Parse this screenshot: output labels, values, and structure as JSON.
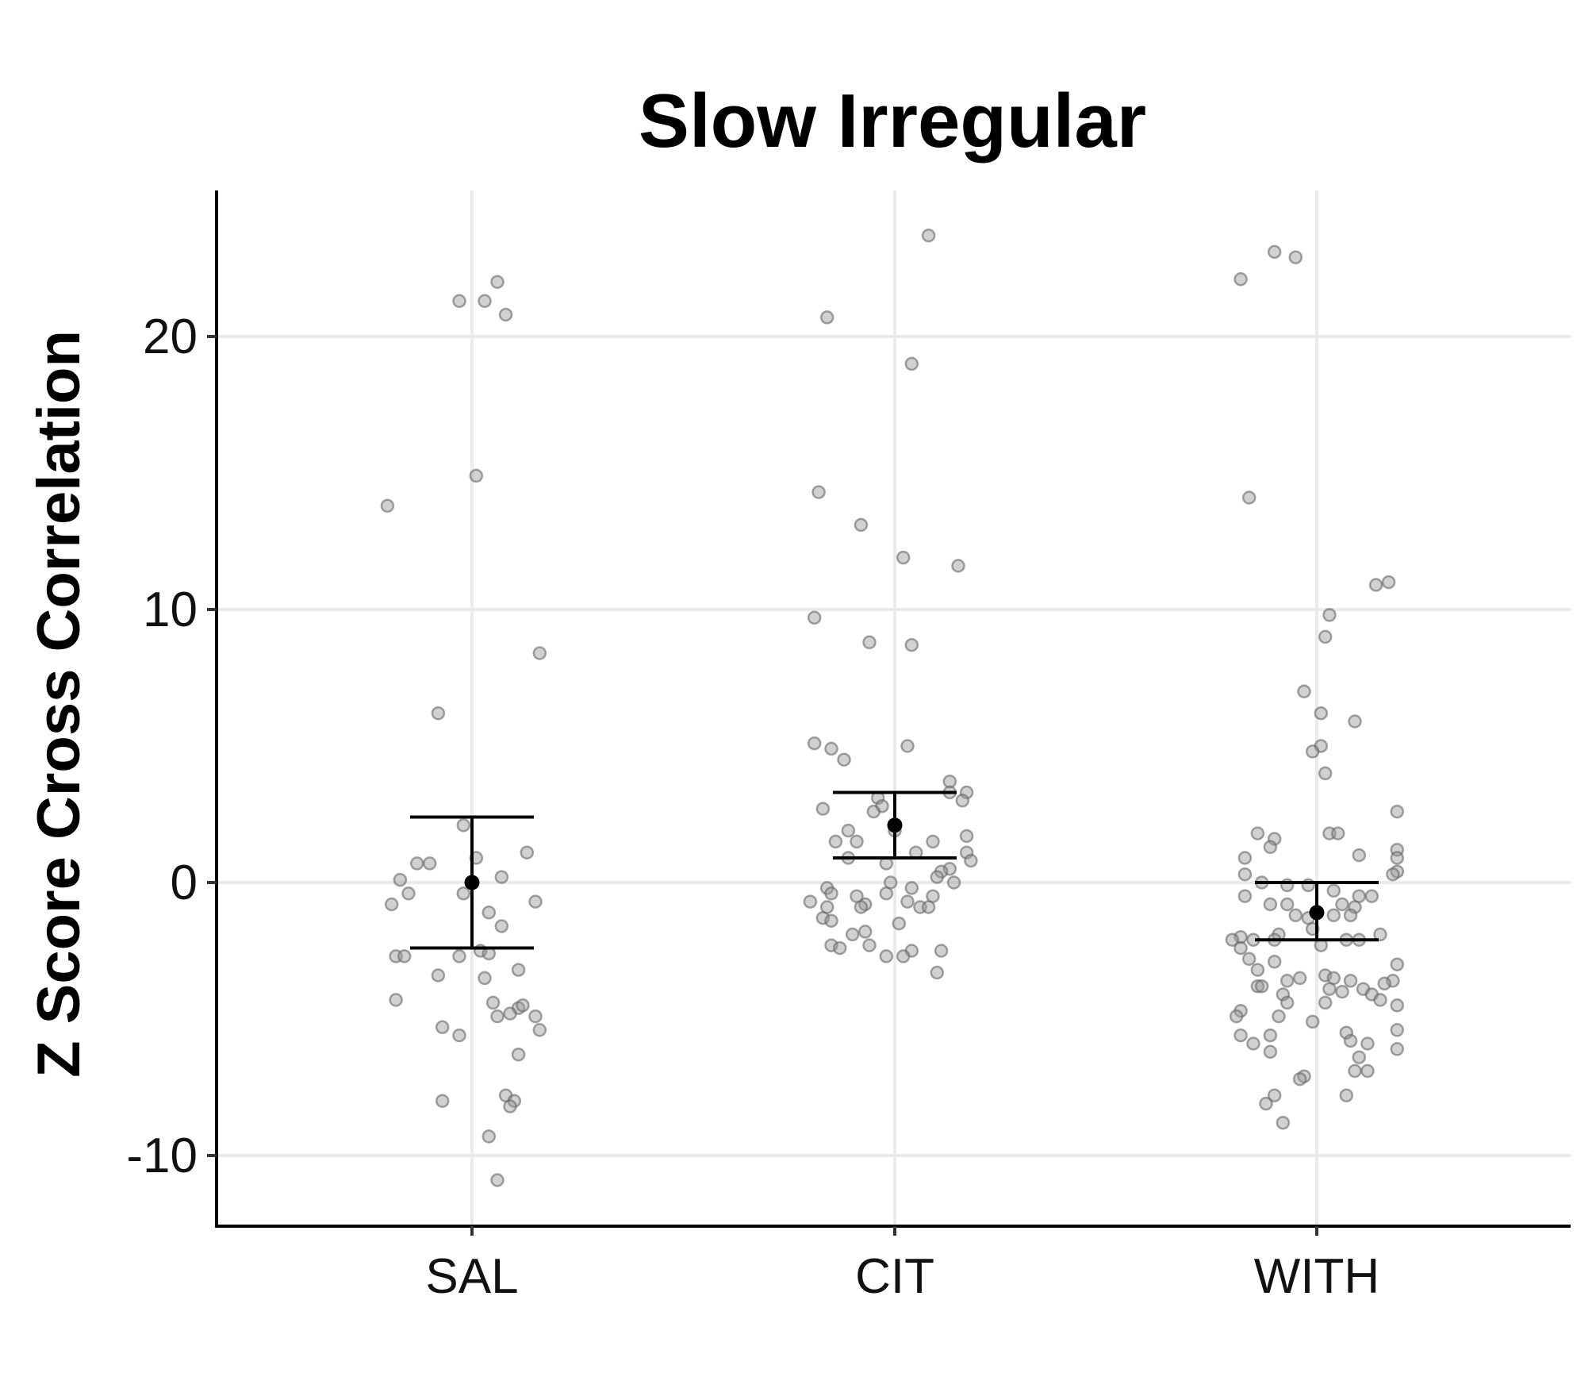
{
  "chart_data": {
    "type": "scatter",
    "title": "Slow Irregular",
    "xlabel": "",
    "ylabel": "Z Score Cross Correlation",
    "categories": [
      "SAL",
      "CIT",
      "WITH"
    ],
    "yticks": [
      -10,
      0,
      10,
      20
    ],
    "ytick_labels": [
      "-10",
      "0",
      "10",
      "20"
    ],
    "ylim": [
      -12.6,
      25.3
    ],
    "grid": true,
    "legend": "none",
    "point_color": "#999999",
    "summary": [
      {
        "category": "SAL",
        "mean": 0.0,
        "lower": -2.4,
        "upper": 2.4
      },
      {
        "category": "CIT",
        "mean": 2.1,
        "lower": 0.9,
        "upper": 3.3
      },
      {
        "category": "WITH",
        "mean": -1.1,
        "lower": -2.1,
        "upper": 0.0
      }
    ],
    "points": {
      "SAL": [
        {
          "j": 0.06,
          "y": 22.0
        },
        {
          "j": -0.03,
          "y": 21.3
        },
        {
          "j": 0.03,
          "y": 21.3
        },
        {
          "j": 0.08,
          "y": 20.8
        },
        {
          "j": 0.01,
          "y": 14.9
        },
        {
          "j": -0.2,
          "y": 13.8
        },
        {
          "j": 0.16,
          "y": 8.4
        },
        {
          "j": -0.08,
          "y": 6.2
        },
        {
          "j": -0.02,
          "y": 2.1
        },
        {
          "j": -0.13,
          "y": 0.7
        },
        {
          "j": -0.1,
          "y": 0.7
        },
        {
          "j": 0.01,
          "y": 0.9
        },
        {
          "j": 0.13,
          "y": 1.1
        },
        {
          "j": -0.17,
          "y": 0.1
        },
        {
          "j": 0.07,
          "y": 0.2
        },
        {
          "j": -0.15,
          "y": -0.4
        },
        {
          "j": -0.02,
          "y": -0.4
        },
        {
          "j": -0.19,
          "y": -0.8
        },
        {
          "j": 0.15,
          "y": -0.7
        },
        {
          "j": 0.04,
          "y": -1.1
        },
        {
          "j": 0.07,
          "y": -1.6
        },
        {
          "j": -0.18,
          "y": -2.7
        },
        {
          "j": -0.16,
          "y": -2.7
        },
        {
          "j": -0.03,
          "y": -2.7
        },
        {
          "j": 0.02,
          "y": -2.5
        },
        {
          "j": 0.04,
          "y": -2.6
        },
        {
          "j": -0.08,
          "y": -3.4
        },
        {
          "j": 0.03,
          "y": -3.5
        },
        {
          "j": 0.11,
          "y": -3.2
        },
        {
          "j": -0.18,
          "y": -4.3
        },
        {
          "j": 0.05,
          "y": -4.4
        },
        {
          "j": 0.11,
          "y": -4.6
        },
        {
          "j": 0.12,
          "y": -4.5
        },
        {
          "j": 0.09,
          "y": -4.8
        },
        {
          "j": 0.06,
          "y": -4.9
        },
        {
          "j": 0.15,
          "y": -4.9
        },
        {
          "j": -0.07,
          "y": -5.3
        },
        {
          "j": 0.16,
          "y": -5.4
        },
        {
          "j": -0.03,
          "y": -5.6
        },
        {
          "j": 0.11,
          "y": -6.3
        },
        {
          "j": 0.08,
          "y": -7.8
        },
        {
          "j": -0.07,
          "y": -8.0
        },
        {
          "j": 0.1,
          "y": -8.0
        },
        {
          "j": 0.09,
          "y": -8.2
        },
        {
          "j": 0.04,
          "y": -9.3
        },
        {
          "j": 0.06,
          "y": -10.9
        }
      ],
      "CIT": [
        {
          "j": 0.08,
          "y": 23.7
        },
        {
          "j": -0.16,
          "y": 20.7
        },
        {
          "j": 0.04,
          "y": 19.0
        },
        {
          "j": -0.18,
          "y": 14.3
        },
        {
          "j": -0.08,
          "y": 13.1
        },
        {
          "j": 0.02,
          "y": 11.9
        },
        {
          "j": 0.15,
          "y": 11.6
        },
        {
          "j": -0.19,
          "y": 9.7
        },
        {
          "j": -0.06,
          "y": 8.8
        },
        {
          "j": 0.04,
          "y": 8.7
        },
        {
          "j": -0.19,
          "y": 5.1
        },
        {
          "j": -0.15,
          "y": 4.9
        },
        {
          "j": 0.03,
          "y": 5.0
        },
        {
          "j": -0.12,
          "y": 4.5
        },
        {
          "j": 0.13,
          "y": 3.7
        },
        {
          "j": 0.17,
          "y": 3.3
        },
        {
          "j": 0.13,
          "y": 3.3
        },
        {
          "j": 0.16,
          "y": 3.0
        },
        {
          "j": -0.04,
          "y": 3.1
        },
        {
          "j": -0.03,
          "y": 2.8
        },
        {
          "j": -0.17,
          "y": 2.7
        },
        {
          "j": -0.05,
          "y": 2.6
        },
        {
          "j": -0.11,
          "y": 1.9
        },
        {
          "j": 0.0,
          "y": 1.9
        },
        {
          "j": 0.17,
          "y": 1.7
        },
        {
          "j": -0.14,
          "y": 1.5
        },
        {
          "j": -0.09,
          "y": 1.5
        },
        {
          "j": 0.09,
          "y": 1.5
        },
        {
          "j": 0.17,
          "y": 1.1
        },
        {
          "j": 0.05,
          "y": 1.1
        },
        {
          "j": -0.11,
          "y": 0.9
        },
        {
          "j": 0.18,
          "y": 0.8
        },
        {
          "j": -0.02,
          "y": 0.7
        },
        {
          "j": 0.13,
          "y": 0.5
        },
        {
          "j": 0.11,
          "y": 0.4
        },
        {
          "j": 0.14,
          "y": 0.0
        },
        {
          "j": 0.1,
          "y": 0.2
        },
        {
          "j": -0.01,
          "y": 0.0
        },
        {
          "j": -0.16,
          "y": -0.2
        },
        {
          "j": 0.04,
          "y": -0.2
        },
        {
          "j": -0.15,
          "y": -0.4
        },
        {
          "j": -0.09,
          "y": -0.5
        },
        {
          "j": -0.02,
          "y": -0.4
        },
        {
          "j": 0.09,
          "y": -0.5
        },
        {
          "j": 0.03,
          "y": -0.7
        },
        {
          "j": -0.2,
          "y": -0.7
        },
        {
          "j": -0.07,
          "y": -0.8
        },
        {
          "j": -0.16,
          "y": -0.9
        },
        {
          "j": -0.08,
          "y": -0.9
        },
        {
          "j": 0.06,
          "y": -0.9
        },
        {
          "j": 0.08,
          "y": -0.9
        },
        {
          "j": -0.17,
          "y": -1.3
        },
        {
          "j": -0.15,
          "y": -1.4
        },
        {
          "j": 0.01,
          "y": -1.5
        },
        {
          "j": -0.07,
          "y": -1.8
        },
        {
          "j": -0.1,
          "y": -1.9
        },
        {
          "j": -0.15,
          "y": -2.3
        },
        {
          "j": -0.13,
          "y": -2.4
        },
        {
          "j": -0.06,
          "y": -2.3
        },
        {
          "j": 0.04,
          "y": -2.5
        },
        {
          "j": 0.11,
          "y": -2.5
        },
        {
          "j": -0.02,
          "y": -2.7
        },
        {
          "j": 0.02,
          "y": -2.7
        },
        {
          "j": 0.1,
          "y": -3.3
        }
      ],
      "WITH": [
        {
          "j": -0.1,
          "y": 23.1
        },
        {
          "j": -0.05,
          "y": 22.9
        },
        {
          "j": -0.18,
          "y": 22.1
        },
        {
          "j": -0.16,
          "y": 14.1
        },
        {
          "j": 0.17,
          "y": 11.0
        },
        {
          "j": 0.14,
          "y": 10.9
        },
        {
          "j": 0.03,
          "y": 9.8
        },
        {
          "j": 0.02,
          "y": 9.0
        },
        {
          "j": -0.03,
          "y": 7.0
        },
        {
          "j": 0.01,
          "y": 6.2
        },
        {
          "j": 0.09,
          "y": 5.9
        },
        {
          "j": 0.01,
          "y": 5.0
        },
        {
          "j": -0.01,
          "y": 4.8
        },
        {
          "j": 0.02,
          "y": 4.0
        },
        {
          "j": 0.19,
          "y": 2.6
        },
        {
          "j": -0.14,
          "y": 1.8
        },
        {
          "j": -0.1,
          "y": 1.6
        },
        {
          "j": 0.03,
          "y": 1.8
        },
        {
          "j": 0.05,
          "y": 1.8
        },
        {
          "j": -0.11,
          "y": 1.3
        },
        {
          "j": 0.19,
          "y": 1.2
        },
        {
          "j": 0.1,
          "y": 1.0
        },
        {
          "j": -0.17,
          "y": 0.9
        },
        {
          "j": 0.19,
          "y": 0.9
        },
        {
          "j": 0.19,
          "y": 0.4
        },
        {
          "j": -0.17,
          "y": 0.3
        },
        {
          "j": 0.18,
          "y": 0.3
        },
        {
          "j": -0.13,
          "y": 0.0
        },
        {
          "j": -0.07,
          "y": -0.1
        },
        {
          "j": -0.02,
          "y": -0.1
        },
        {
          "j": 0.04,
          "y": -0.3
        },
        {
          "j": -0.17,
          "y": -0.5
        },
        {
          "j": 0.1,
          "y": -0.5
        },
        {
          "j": 0.13,
          "y": -0.5
        },
        {
          "j": -0.11,
          "y": -0.8
        },
        {
          "j": -0.07,
          "y": -0.8
        },
        {
          "j": 0.06,
          "y": -0.8
        },
        {
          "j": 0.09,
          "y": -0.9
        },
        {
          "j": -0.05,
          "y": -1.2
        },
        {
          "j": 0.04,
          "y": -1.2
        },
        {
          "j": -0.02,
          "y": -1.3
        },
        {
          "j": 0.08,
          "y": -1.2
        },
        {
          "j": -0.01,
          "y": -1.7
        },
        {
          "j": -0.09,
          "y": -1.9
        },
        {
          "j": -0.18,
          "y": -2.0
        },
        {
          "j": -0.2,
          "y": -2.1
        },
        {
          "j": -0.15,
          "y": -2.1
        },
        {
          "j": -0.1,
          "y": -2.1
        },
        {
          "j": 0.07,
          "y": -2.1
        },
        {
          "j": 0.1,
          "y": -2.1
        },
        {
          "j": 0.15,
          "y": -1.9
        },
        {
          "j": -0.18,
          "y": -2.4
        },
        {
          "j": 0.01,
          "y": -2.3
        },
        {
          "j": -0.16,
          "y": -2.8
        },
        {
          "j": -0.14,
          "y": -3.2
        },
        {
          "j": -0.1,
          "y": -2.9
        },
        {
          "j": 0.02,
          "y": -3.4
        },
        {
          "j": 0.19,
          "y": -3.0
        },
        {
          "j": 0.04,
          "y": -3.5
        },
        {
          "j": -0.07,
          "y": -3.6
        },
        {
          "j": -0.04,
          "y": -3.5
        },
        {
          "j": 0.08,
          "y": -3.6
        },
        {
          "j": 0.18,
          "y": -3.6
        },
        {
          "j": 0.16,
          "y": -3.7
        },
        {
          "j": -0.14,
          "y": -3.8
        },
        {
          "j": -0.13,
          "y": -3.8
        },
        {
          "j": 0.11,
          "y": -3.9
        },
        {
          "j": -0.08,
          "y": -4.1
        },
        {
          "j": 0.03,
          "y": -3.9
        },
        {
          "j": 0.06,
          "y": -4.0
        },
        {
          "j": 0.13,
          "y": -4.1
        },
        {
          "j": 0.15,
          "y": -4.3
        },
        {
          "j": -0.07,
          "y": -4.4
        },
        {
          "j": 0.02,
          "y": -4.4
        },
        {
          "j": 0.19,
          "y": -4.5
        },
        {
          "j": -0.18,
          "y": -4.7
        },
        {
          "j": -0.19,
          "y": -4.9
        },
        {
          "j": -0.09,
          "y": -4.9
        },
        {
          "j": -0.01,
          "y": -5.1
        },
        {
          "j": -0.18,
          "y": -5.6
        },
        {
          "j": -0.11,
          "y": -5.6
        },
        {
          "j": 0.07,
          "y": -5.5
        },
        {
          "j": 0.19,
          "y": -5.4
        },
        {
          "j": -0.15,
          "y": -5.9
        },
        {
          "j": 0.08,
          "y": -5.8
        },
        {
          "j": 0.12,
          "y": -5.9
        },
        {
          "j": -0.11,
          "y": -6.2
        },
        {
          "j": 0.19,
          "y": -6.1
        },
        {
          "j": 0.1,
          "y": -6.4
        },
        {
          "j": 0.09,
          "y": -6.9
        },
        {
          "j": 0.12,
          "y": -6.9
        },
        {
          "j": -0.03,
          "y": -7.1
        },
        {
          "j": -0.04,
          "y": -7.2
        },
        {
          "j": -0.1,
          "y": -7.8
        },
        {
          "j": 0.07,
          "y": -7.8
        },
        {
          "j": -0.12,
          "y": -8.1
        },
        {
          "j": -0.08,
          "y": -8.8
        }
      ]
    }
  }
}
